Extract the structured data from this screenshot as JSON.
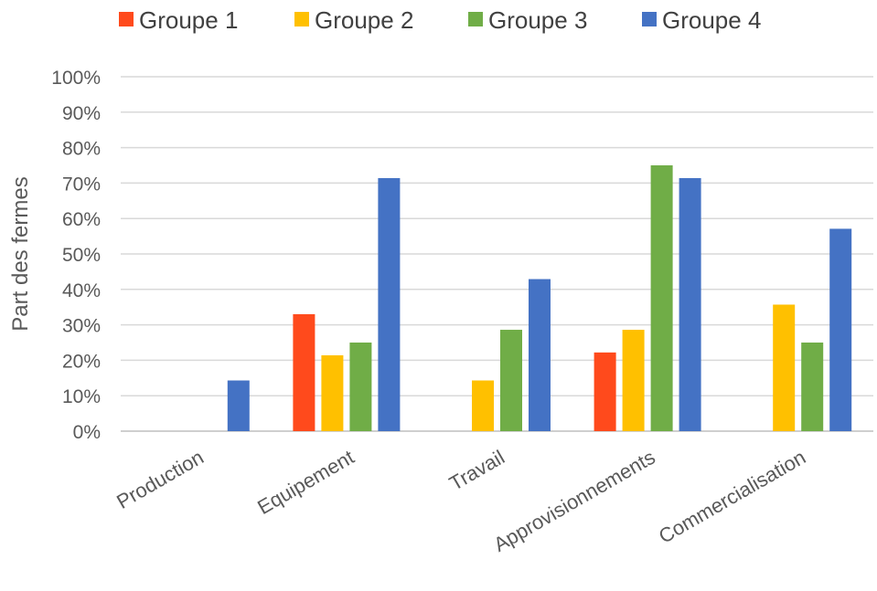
{
  "chart_data": {
    "type": "bar",
    "title": "",
    "xlabel": "",
    "ylabel": "Part des fermes",
    "categories": [
      "Production",
      "Equipement",
      "Travail",
      "Approvisionnements",
      "Commercialisation"
    ],
    "series": [
      {
        "name": "Groupe 1",
        "color": "#FF4A1C",
        "values": [
          0,
          0.33,
          0,
          0.222,
          0
        ]
      },
      {
        "name": "Groupe 2",
        "color": "#FFC000",
        "values": [
          0,
          0.214,
          0.143,
          0.286,
          0.357
        ]
      },
      {
        "name": "Groupe 3",
        "color": "#70AD47",
        "values": [
          0,
          0.25,
          0.286,
          0.75,
          0.25
        ]
      },
      {
        "name": "Groupe 4",
        "color": "#4472C4",
        "values": [
          0.143,
          0.714,
          0.429,
          0.714,
          0.571
        ]
      }
    ],
    "ylim": [
      0,
      1
    ],
    "yticks": [
      "0%",
      "10%",
      "20%",
      "30%",
      "40%",
      "50%",
      "60%",
      "70%",
      "80%",
      "90%",
      "100%"
    ],
    "grid": true,
    "legend_position": "top"
  }
}
